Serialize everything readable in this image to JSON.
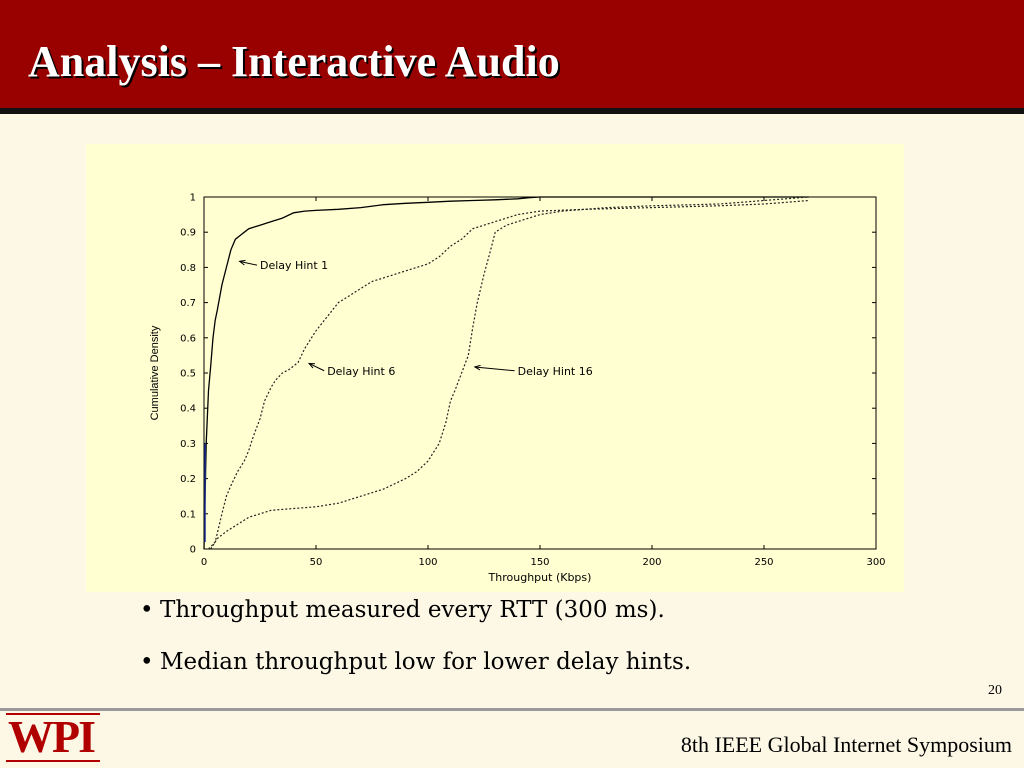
{
  "slide": {
    "title": "Analysis – Interactive Audio",
    "bullets": [
      "Throughput measured every RTT (300 ms).",
      "Median throughput low for lower delay hints."
    ],
    "bullet_glyph": "•",
    "page_number": "20",
    "footer_text": "8th IEEE Global Internet Symposium",
    "logo_text": "WPI",
    "colors": {
      "title_bar": "#990000",
      "background": "#fdf8e6",
      "chart_panel": "#ffffd2",
      "logo": "#b00000"
    }
  },
  "chart_data": {
    "type": "line",
    "title": "",
    "xlabel": "Throughput (Kbps)",
    "ylabel": "Cumulative Density",
    "xlim": [
      0,
      300
    ],
    "ylim": [
      0,
      1
    ],
    "x_ticks": [
      0,
      50,
      100,
      150,
      200,
      250,
      300
    ],
    "y_ticks": [
      0,
      0.1,
      0.2,
      0.3,
      0.4,
      0.5,
      0.6,
      0.7,
      0.8,
      0.9,
      1
    ],
    "grid": false,
    "legend": "none",
    "series": [
      {
        "name": "Delay Hint 1",
        "style": "solid",
        "x": [
          0,
          1,
          2,
          3,
          4,
          5,
          6,
          8,
          10,
          12,
          14,
          16,
          18,
          20,
          25,
          30,
          35,
          40,
          45,
          50,
          60,
          70,
          80,
          90,
          100,
          110,
          120,
          130,
          140,
          145,
          150,
          200,
          250,
          270
        ],
        "y": [
          0,
          0.3,
          0.45,
          0.52,
          0.6,
          0.65,
          0.68,
          0.75,
          0.8,
          0.85,
          0.88,
          0.89,
          0.9,
          0.91,
          0.92,
          0.93,
          0.94,
          0.955,
          0.96,
          0.962,
          0.965,
          0.97,
          0.978,
          0.982,
          0.985,
          0.988,
          0.99,
          0.992,
          0.995,
          0.998,
          1.0,
          1.0,
          1.0,
          1.0
        ]
      },
      {
        "name": "Delay Hint 6",
        "style": "dotted",
        "x": [
          2,
          5,
          8,
          10,
          12,
          15,
          18,
          20,
          22,
          25,
          27,
          30,
          32,
          35,
          38,
          40,
          42,
          45,
          48,
          50,
          55,
          60,
          65,
          70,
          75,
          80,
          90,
          100,
          105,
          110,
          115,
          120,
          130,
          140,
          150,
          170,
          200,
          230,
          250,
          260,
          270
        ],
        "y": [
          0,
          0.02,
          0.1,
          0.15,
          0.18,
          0.22,
          0.25,
          0.28,
          0.32,
          0.37,
          0.42,
          0.46,
          0.48,
          0.5,
          0.51,
          0.52,
          0.53,
          0.57,
          0.6,
          0.62,
          0.66,
          0.7,
          0.72,
          0.74,
          0.76,
          0.77,
          0.79,
          0.81,
          0.83,
          0.86,
          0.88,
          0.91,
          0.93,
          0.95,
          0.96,
          0.965,
          0.97,
          0.975,
          0.98,
          0.985,
          0.99
        ]
      },
      {
        "name": "Delay Hint 16",
        "style": "dotted",
        "x": [
          3,
          6,
          10,
          15,
          20,
          25,
          30,
          40,
          50,
          60,
          70,
          80,
          90,
          95,
          100,
          105,
          108,
          110,
          112,
          115,
          118,
          120,
          122,
          125,
          128,
          130,
          135,
          140,
          145,
          150,
          160,
          180,
          200,
          230,
          250,
          270
        ],
        "y": [
          0,
          0.03,
          0.05,
          0.07,
          0.09,
          0.1,
          0.11,
          0.115,
          0.12,
          0.13,
          0.15,
          0.17,
          0.2,
          0.22,
          0.25,
          0.3,
          0.36,
          0.42,
          0.45,
          0.5,
          0.55,
          0.63,
          0.7,
          0.78,
          0.85,
          0.9,
          0.92,
          0.93,
          0.94,
          0.95,
          0.96,
          0.97,
          0.975,
          0.98,
          0.99,
          1.0
        ]
      }
    ],
    "annotations": [
      {
        "text": "Delay Hint 1",
        "series": 0,
        "arrow_to": [
          15,
          0.82
        ],
        "text_at": [
          25,
          0.795
        ]
      },
      {
        "text": "Delay Hint 6",
        "series": 1,
        "arrow_to": [
          46,
          0.53
        ],
        "text_at": [
          55,
          0.495
        ]
      },
      {
        "text": "Delay Hint 16",
        "series": 2,
        "arrow_to": [
          120,
          0.52
        ],
        "text_at": [
          140,
          0.495
        ]
      }
    ]
  }
}
